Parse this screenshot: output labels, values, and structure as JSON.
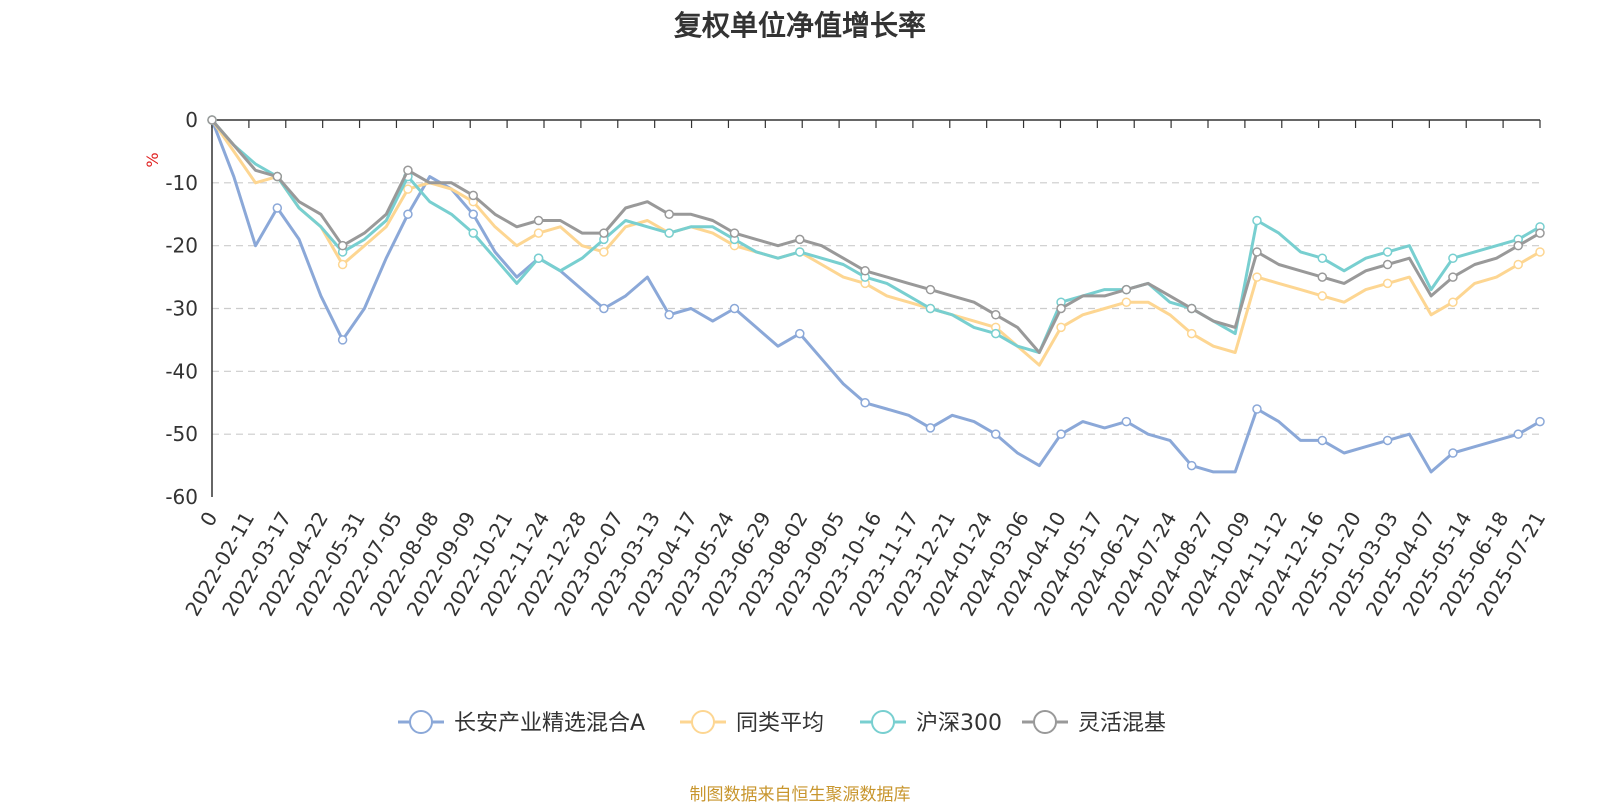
{
  "chart_data": {
    "type": "line",
    "title": "复权单位净值增长率",
    "ylabel": "%",
    "ylim": [
      -60,
      0
    ],
    "yticks": [
      0,
      -10,
      -20,
      -30,
      -40,
      -50,
      -60
    ],
    "x_ticks": [
      "0",
      "2022-02-11",
      "2022-03-17",
      "2022-04-22",
      "2022-05-31",
      "2022-07-05",
      "2022-08-08",
      "2022-09-09",
      "2022-10-21",
      "2022-11-24",
      "2022-12-28",
      "2023-02-07",
      "2023-03-13",
      "2023-04-17",
      "2023-05-24",
      "2023-06-29",
      "2023-08-02",
      "2023-09-05",
      "2023-10-16",
      "2023-11-17",
      "2023-12-21",
      "2024-01-24",
      "2024-03-06",
      "2024-04-10",
      "2024-05-17",
      "2024-06-21",
      "2024-07-24",
      "2024-08-27",
      "2024-10-09",
      "2024-11-12",
      "2024-12-16",
      "2025-01-20",
      "2025-03-03",
      "2025-04-07",
      "2025-05-14",
      "2025-06-18",
      "2025-07-21"
    ],
    "grid": "dashed-horizontal",
    "legend": "bottom-center",
    "series": [
      {
        "name": "长安产业精选混合A",
        "color": "#8ba8d8",
        "values": [
          0,
          -9,
          -20,
          -14,
          -19,
          -28,
          -35,
          -30,
          -22,
          -15,
          -9,
          -11,
          -15,
          -21,
          -25,
          -22,
          -24,
          -27,
          -30,
          -28,
          -25,
          -31,
          -30,
          -32,
          -30,
          -33,
          -36,
          -34,
          -38,
          -42,
          -45,
          -46,
          -47,
          -49,
          -47,
          -48,
          -50,
          -53,
          -55,
          -50,
          -48,
          -49,
          -48,
          -50,
          -51,
          -55,
          -56,
          -56,
          -46,
          -48,
          -51,
          -51,
          -53,
          -52,
          -51,
          -50,
          -56,
          -53,
          -52,
          -51,
          -50,
          -48
        ]
      },
      {
        "name": "同类平均",
        "color": "#fdd692",
        "values": [
          0,
          -5,
          -10,
          -9,
          -14,
          -17,
          -23,
          -20,
          -17,
          -11,
          -10,
          -11,
          -13,
          -17,
          -20,
          -18,
          -17,
          -20,
          -21,
          -17,
          -16,
          -18,
          -17,
          -18,
          -20,
          -21,
          -22,
          -21,
          -23,
          -25,
          -26,
          -28,
          -29,
          -30,
          -31,
          -32,
          -33,
          -36,
          -39,
          -33,
          -31,
          -30,
          -29,
          -29,
          -31,
          -34,
          -36,
          -37,
          -25,
          -26,
          -27,
          -28,
          -29,
          -27,
          -26,
          -25,
          -31,
          -29,
          -26,
          -25,
          -23,
          -21
        ]
      },
      {
        "name": "沪深300",
        "color": "#78cfd0",
        "values": [
          0,
          -4,
          -7,
          -9,
          -14,
          -17,
          -21,
          -19,
          -16,
          -9,
          -13,
          -15,
          -18,
          -22,
          -26,
          -22,
          -24,
          -22,
          -19,
          -16,
          -17,
          -18,
          -17,
          -17,
          -19,
          -21,
          -22,
          -21,
          -22,
          -23,
          -25,
          -26,
          -28,
          -30,
          -31,
          -33,
          -34,
          -36,
          -37,
          -29,
          -28,
          -27,
          -27,
          -26,
          -29,
          -30,
          -32,
          -34,
          -16,
          -18,
          -21,
          -22,
          -24,
          -22,
          -21,
          -20,
          -27,
          -22,
          -21,
          -20,
          -19,
          -17
        ]
      },
      {
        "name": "灵活混基",
        "color": "#999999",
        "values": [
          0,
          -4,
          -8,
          -9,
          -13,
          -15,
          -20,
          -18,
          -15,
          -8,
          -10,
          -10,
          -12,
          -15,
          -17,
          -16,
          -16,
          -18,
          -18,
          -14,
          -13,
          -15,
          -15,
          -16,
          -18,
          -19,
          -20,
          -19,
          -20,
          -22,
          -24,
          -25,
          -26,
          -27,
          -28,
          -29,
          -31,
          -33,
          -37,
          -30,
          -28,
          -28,
          -27,
          -26,
          -28,
          -30,
          -32,
          -33,
          -21,
          -23,
          -24,
          -25,
          -26,
          -24,
          -23,
          -22,
          -28,
          -25,
          -23,
          -22,
          -20,
          -18
        ]
      }
    ]
  },
  "source_note": "制图数据来自恒生聚源数据库"
}
